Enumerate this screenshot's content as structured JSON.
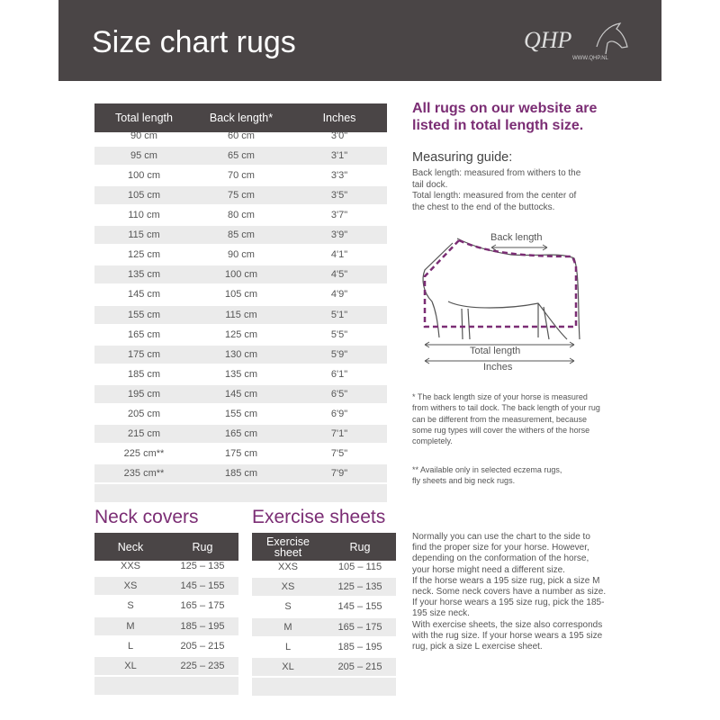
{
  "header": {
    "title": "Size chart rugs",
    "logo": "QHP",
    "website": "WWW.QHP.NL"
  },
  "size_table": {
    "columns": [
      "Total length",
      "Back length*",
      "Inches"
    ],
    "rows": [
      [
        "90 cm",
        "60 cm",
        "3'0\""
      ],
      [
        "95 cm",
        "65 cm",
        "3'1\""
      ],
      [
        "100 cm",
        "70 cm",
        "3'3\""
      ],
      [
        "105 cm",
        "75 cm",
        "3'5\""
      ],
      [
        "110 cm",
        "80 cm",
        "3'7\""
      ],
      [
        "115 cm",
        "85 cm",
        "3'9\""
      ],
      [
        "125 cm",
        "90 cm",
        "4'1\""
      ],
      [
        "135 cm",
        "100 cm",
        "4'5\""
      ],
      [
        "145 cm",
        "105 cm",
        "4'9\""
      ],
      [
        "155 cm",
        "115 cm",
        "5'1\""
      ],
      [
        "165 cm",
        "125 cm",
        "5'5\""
      ],
      [
        "175 cm",
        "130 cm",
        "5'9\""
      ],
      [
        "185 cm",
        "135 cm",
        "6'1\""
      ],
      [
        "195 cm",
        "145 cm",
        "6'5\""
      ],
      [
        "205 cm",
        "155 cm",
        "6'9\""
      ],
      [
        "215 cm",
        "165 cm",
        "7'1\""
      ],
      [
        "225 cm**",
        "175 cm",
        "7'5\""
      ],
      [
        "235 cm**",
        "185 cm",
        "7'9\""
      ]
    ]
  },
  "info": {
    "heading": [
      "All rugs on our website are",
      "listed in total length size."
    ],
    "guide_title": "Measuring guide:",
    "guide_lines": [
      "Back length: measured from withers to the",
      "tail dock.",
      "Total length: measured from the center of",
      "the chest to the end of the buttocks."
    ],
    "diagram": {
      "back_length": "Back length",
      "total_length": "Total length",
      "inches": "Inches"
    },
    "note1": [
      "* The back length size of your horse is measured",
      "from withers to tail dock. The back length of your rug",
      "can be different from the measurement, because",
      "some rug types will cover the withers of the horse",
      "completely."
    ],
    "note2": [
      "** Available only in selected eczema rugs,",
      "fly sheets and big neck rugs."
    ]
  },
  "neck_covers": {
    "title": "Neck covers",
    "columns": [
      "Neck",
      "Rug"
    ],
    "rows": [
      [
        "XXS",
        "125 – 135"
      ],
      [
        "XS",
        "145 – 155"
      ],
      [
        "S",
        "165 – 175"
      ],
      [
        "M",
        "185 – 195"
      ],
      [
        "L",
        "205 – 215"
      ],
      [
        "XL",
        "225 – 235"
      ]
    ]
  },
  "exercise_sheets": {
    "title": "Exercise sheets",
    "columns": [
      "Exercise sheet",
      "Rug"
    ],
    "rows": [
      [
        "XXS",
        "105 – 115"
      ],
      [
        "XS",
        "125 – 135"
      ],
      [
        "S",
        "145 – 155"
      ],
      [
        "M",
        "165 – 175"
      ],
      [
        "L",
        "185 – 195"
      ],
      [
        "XL",
        "205 – 215"
      ]
    ]
  },
  "advice": [
    "Normally you can use the chart to the side to",
    "find the proper size for your horse. However,",
    "depending on the conformation of the horse,",
    "your horse might need a different size.",
    "If the horse wears a 195 size rug, pick a size M",
    "neck. Some neck covers have a number as size.",
    "If your horse wears a 195 size rug, pick the 185-",
    "195 size neck.",
    "With exercise sheets, the size also corresponds",
    "with the rug size. If your horse wears a 195 size",
    "rug, pick a size L exercise sheet."
  ]
}
